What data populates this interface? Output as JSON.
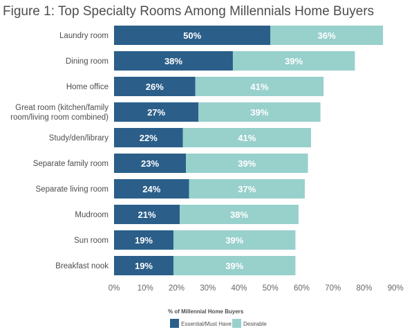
{
  "chart_data": {
    "type": "bar",
    "stacked": true,
    "orientation": "horizontal",
    "title": "Figure 1: Top Specialty Rooms Among Millennials Home Buyers",
    "categories": [
      "Laundry room",
      "Dining room",
      "Home office",
      "Great room (kitchen/family room/living room combined)",
      "Study/den/library",
      "Separate family room",
      "Separate living room",
      "Mudroom",
      "Sun room",
      "Breakfast nook"
    ],
    "category_lines": [
      [
        "Laundry room"
      ],
      [
        "Dining room"
      ],
      [
        "Home office"
      ],
      [
        "Great room (kitchen/family",
        "room/living room combined)"
      ],
      [
        "Study/den/library"
      ],
      [
        "Separate family room"
      ],
      [
        "Separate living room"
      ],
      [
        "Mudroom"
      ],
      [
        "Sun room"
      ],
      [
        "Breakfast nook"
      ]
    ],
    "series": [
      {
        "name": "Essential/Must Have",
        "color": "#2b5f8a",
        "values": [
          50,
          38,
          26,
          27,
          22,
          23,
          24,
          21,
          19,
          19
        ]
      },
      {
        "name": "Desirable",
        "color": "#98d0cc",
        "values": [
          36,
          39,
          41,
          39,
          41,
          39,
          37,
          38,
          39,
          39
        ]
      }
    ],
    "value_labels": [
      [
        "50%",
        "38%",
        "26%",
        "27%",
        "22%",
        "23%",
        "24%",
        "21%",
        "19%",
        "19%"
      ],
      [
        "36%",
        "39%",
        "41%",
        "39%",
        "41%",
        "39%",
        "37%",
        "38%",
        "39%",
        "39%"
      ]
    ],
    "xlim": [
      0,
      90
    ],
    "xticks": [
      0,
      10,
      20,
      30,
      40,
      50,
      60,
      70,
      80,
      90
    ],
    "xtick_labels": [
      "0%",
      "10%",
      "20%",
      "30%",
      "40%",
      "50%",
      "60%",
      "70%",
      "80%",
      "90%"
    ],
    "grid": false,
    "legend": {
      "title": "% of Millennial Home Buyers",
      "placement": "bottom-center"
    }
  }
}
